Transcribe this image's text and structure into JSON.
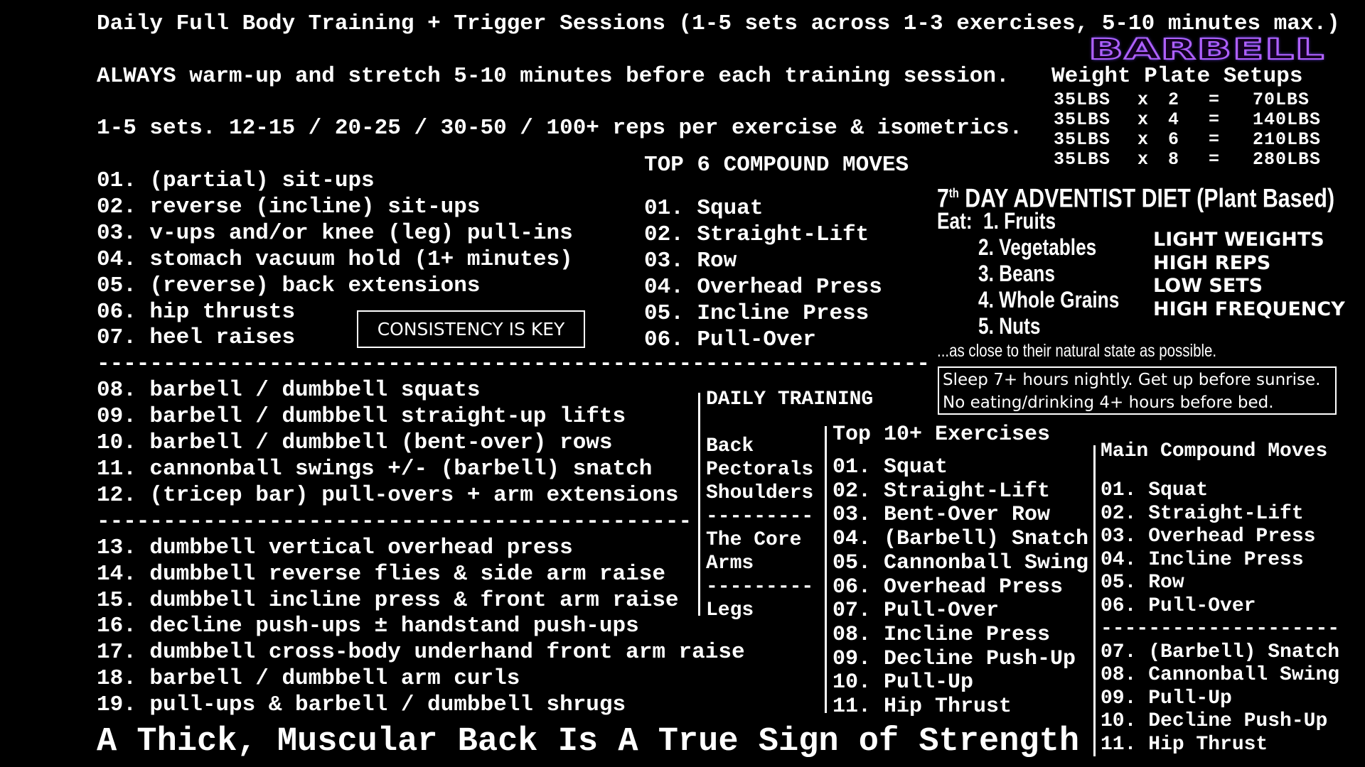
{
  "header": {
    "title": "Daily Full Body Training + Trigger Sessions (1-5 sets across 1-3 exercises, 5-10 minutes max.)",
    "warmup": "ALWAYS warm-up and stretch 5-10 minutes before each training session.",
    "sets": "1-5 sets. 12-15 / 20-25 / 30-50 / 100+ reps per exercise & isometrics."
  },
  "logo": {
    "text": "BARBELL",
    "color": "#b060ff"
  },
  "main_list": [
    "01. (partial) sit-ups",
    "02. reverse (incline) sit-ups",
    "03. v-ups and/or knee (leg) pull-ins",
    "04. stomach vacuum hold (1+ minutes)",
    "05. (reverse) back extensions",
    "06. hip thrusts",
    "07. heel raises",
    "---------------------------------------------------------------",
    "08. barbell / dumbbell squats",
    "09. barbell / dumbbell straight-up lifts",
    "10. barbell / dumbbell (bent-over) rows",
    "11. cannonball swings +/- (barbell) snatch",
    "12. (tricep bar) pull-overs + arm extensions",
    "---------------------------------------------",
    "13. dumbbell vertical overhead press",
    "14. dumbbell reverse flies & side arm raise",
    "15. dumbbell incline press & front arm raise",
    "16. decline push-ups ± handstand push-ups",
    "17. dumbbell cross-body underhand front arm raise",
    "18. barbell / dumbbell arm curls",
    "19. pull-ups & barbell / dumbbell shrugs"
  ],
  "consistency": "CONSISTENCY IS KEY",
  "top6": {
    "title": "TOP 6 COMPOUND MOVES",
    "items": [
      "01. Squat",
      "02. Straight-Lift",
      "03. Row",
      "04. Overhead Press",
      "05. Incline Press",
      "06. Pull-Over"
    ]
  },
  "plates": {
    "title": "Weight Plate Setups",
    "rows": [
      {
        "weight": "35LBS",
        "x": "x",
        "count": "2",
        "eq": "=",
        "total": "70LBS"
      },
      {
        "weight": "35LBS",
        "x": "x",
        "count": "4",
        "eq": "=",
        "total": "140LBS"
      },
      {
        "weight": "35LBS",
        "x": "x",
        "count": "6",
        "eq": "=",
        "total": "210LBS"
      },
      {
        "weight": "35LBS",
        "x": "x",
        "count": "8",
        "eq": "=",
        "total": "280LBS"
      }
    ]
  },
  "diet": {
    "title_num": "7",
    "title_sup": "th",
    "title_rest": " DAY ADVENTIST DIET (Plant Based)",
    "eat_label": "Eat:",
    "items": [
      "1. Fruits",
      "2. Vegetables",
      "3. Beans",
      "4. Whole Grains",
      "5. Nuts"
    ],
    "note": "...as close to their natural state as possible."
  },
  "principles": [
    "LIGHT WEIGHTS",
    "HIGH REPS",
    "LOW SETS",
    "HIGH FREQUENCY"
  ],
  "sleep": [
    "Sleep 7+ hours nightly. Get up before sunrise.",
    "No eating/drinking 4+ hours before bed."
  ],
  "daily_training": {
    "title": "DAILY TRAINING",
    "items": [
      "Back",
      "Pectorals",
      "Shoulders",
      "---------",
      "The Core",
      "Arms",
      "---------",
      "Legs"
    ]
  },
  "top10": {
    "title": "Top 10+ Exercises",
    "items": [
      "01. Squat",
      "02. Straight-Lift",
      "03. Bent-Over Row",
      "04. (Barbell) Snatch",
      "05. Cannonball Swing",
      "06. Overhead Press",
      "07. Pull-Over",
      "08. Incline Press",
      "09. Decline Push-Up",
      "10. Pull-Up",
      "11. Hip Thrust"
    ]
  },
  "main_compound": {
    "title": "Main Compound Moves",
    "items": [
      "01. Squat",
      "02. Straight-Lift",
      "03. Overhead Press",
      "04. Incline Press",
      "05. Row",
      "06. Pull-Over",
      "--------------------",
      "07. (Barbell) Snatch",
      "08. Cannonball Swing",
      "09. Pull-Up",
      "10. Decline Push-Up",
      "11. Hip Thrust"
    ]
  },
  "footer": "A Thick, Muscular Back Is A True Sign of Strength"
}
